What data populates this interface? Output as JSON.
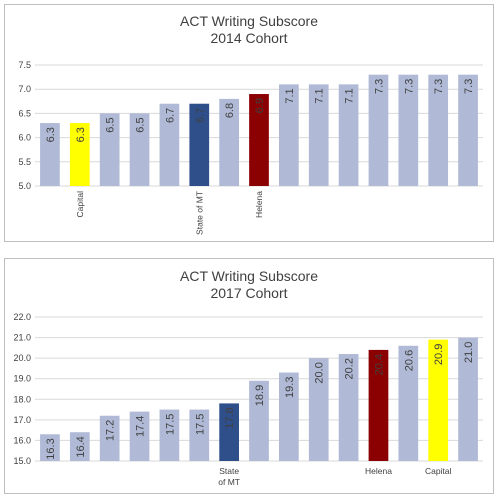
{
  "chart_data": [
    {
      "type": "bar",
      "title": "ACT Writing Subscore",
      "subtitle": "2014 Cohort",
      "categories": [
        "",
        "Capital",
        "",
        "",
        "",
        "State of MT",
        "",
        "Helena",
        "",
        "",
        "",
        "",
        "",
        "",
        ""
      ],
      "values": [
        6.3,
        6.3,
        6.5,
        6.5,
        6.7,
        6.7,
        6.8,
        6.9,
        7.1,
        7.1,
        7.1,
        7.3,
        7.3,
        7.3,
        7.3
      ],
      "data_labels": [
        "6.3",
        "6.3",
        "6.5",
        "6.5",
        "6.7",
        "6.7",
        "6.8",
        "6.9",
        "7.1",
        "7.1",
        "7.1",
        "7.3",
        "7.3",
        "7.3",
        "7.3"
      ],
      "bar_colors": [
        "#b0bad6",
        "#ffff00",
        "#b0bad6",
        "#b0bad6",
        "#b0bad6",
        "#2e4f8a",
        "#b0bad6",
        "#8b0000",
        "#b0bad6",
        "#b0bad6",
        "#b0bad6",
        "#b0bad6",
        "#b0bad6",
        "#b0bad6",
        "#b0bad6"
      ],
      "ylim": [
        5.0,
        7.5
      ],
      "yticks": [
        "5.0",
        "5.5",
        "6.0",
        "6.5",
        "7.0",
        "7.5"
      ],
      "grid": true,
      "xlabel": "",
      "ylabel": ""
    },
    {
      "type": "bar",
      "title": "ACT Writing Subscore",
      "subtitle": "2017 Cohort",
      "categories": [
        "",
        "",
        "",
        "",
        "",
        "",
        "State of MT",
        "",
        "",
        "",
        "",
        "Helena",
        "",
        "Capital",
        ""
      ],
      "values": [
        16.3,
        16.4,
        17.2,
        17.4,
        17.5,
        17.5,
        17.8,
        18.9,
        19.3,
        20.0,
        20.2,
        20.4,
        20.6,
        20.9,
        21.0
      ],
      "data_labels": [
        "16.3",
        "16.4",
        "17.2",
        "17.4",
        "17.5",
        "17.5",
        "17.8",
        "18.9",
        "19.3",
        "20.0",
        "20.2",
        "20.4",
        "20.6",
        "20.9",
        "21.0"
      ],
      "bar_colors": [
        "#b0bad6",
        "#b0bad6",
        "#b0bad6",
        "#b0bad6",
        "#b0bad6",
        "#b0bad6",
        "#2e4f8a",
        "#b0bad6",
        "#b0bad6",
        "#b0bad6",
        "#b0bad6",
        "#8b0000",
        "#b0bad6",
        "#ffff00",
        "#b0bad6"
      ],
      "ylim": [
        15.0,
        22.0
      ],
      "yticks": [
        "15.0",
        "16.0",
        "17.0",
        "18.0",
        "19.0",
        "20.0",
        "21.0",
        "22.0"
      ],
      "grid": true,
      "xlabel": "",
      "ylabel": ""
    }
  ]
}
